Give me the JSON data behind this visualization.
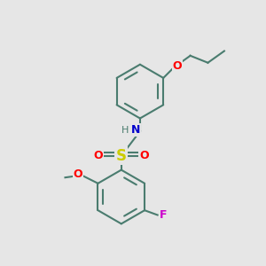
{
  "bg_color": "#e6e6e6",
  "bond_color": "#4a7c6f",
  "bond_width": 1.5,
  "atom_colors": {
    "N": "#0000cc",
    "O": "#ff0000",
    "S": "#cccc00",
    "F": "#cc00cc",
    "H": "#4a7c6f",
    "C": "#4a7c6f"
  },
  "font_size": 9,
  "fig_size": [
    3.0,
    3.0
  ],
  "dpi": 100,
  "xlim": [
    -0.5,
    1.3
  ],
  "ylim": [
    -1.1,
    1.15
  ]
}
